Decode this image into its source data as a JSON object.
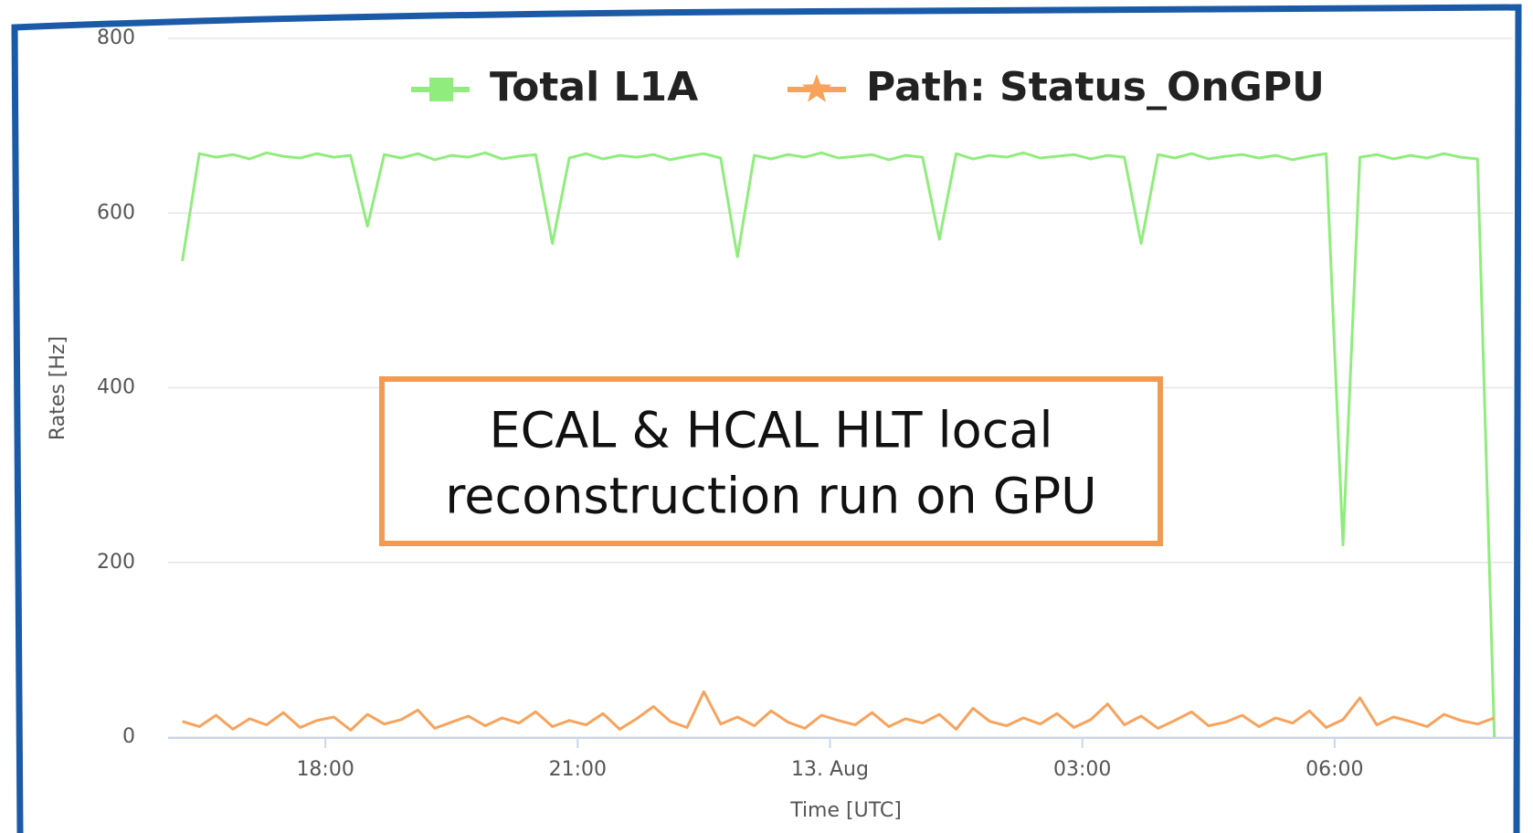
{
  "chart_data": {
    "type": "line",
    "annotation": [
      "ECAL & HCAL HLT  local",
      "reconstruction run on GPU"
    ],
    "xlabel": "Time [UTC]",
    "ylabel": "Rates [Hz]",
    "legend": "top",
    "xlim": [
      16.13,
      32.12
    ],
    "xticks": [
      {
        "value": 18,
        "label": "18:00"
      },
      {
        "value": 21,
        "label": "21:00"
      },
      {
        "value": 24,
        "label": "13. Aug"
      },
      {
        "value": 27,
        "label": "03:00"
      },
      {
        "value": 30,
        "label": "06:00"
      }
    ],
    "ylim": [
      0,
      800
    ],
    "yticks": [
      0,
      200,
      400,
      600,
      800
    ],
    "grid": true,
    "x": [
      16.3,
      16.5,
      16.7,
      16.9,
      17.1,
      17.3,
      17.5,
      17.7,
      17.9,
      18.1,
      18.3,
      18.5,
      18.7,
      18.9,
      19.1,
      19.3,
      19.5,
      19.7,
      19.9,
      20.1,
      20.3,
      20.5,
      20.7,
      20.9,
      21.1,
      21.3,
      21.5,
      21.7,
      21.9,
      22.1,
      22.3,
      22.5,
      22.7,
      22.9,
      23.1,
      23.3,
      23.5,
      23.7,
      23.9,
      24.1,
      24.3,
      24.5,
      24.7,
      24.9,
      25.1,
      25.3,
      25.5,
      25.7,
      25.9,
      26.1,
      26.3,
      26.5,
      26.7,
      26.9,
      27.1,
      27.3,
      27.5,
      27.7,
      27.9,
      28.1,
      28.3,
      28.5,
      28.7,
      28.9,
      29.1,
      29.3,
      29.5,
      29.7,
      29.9,
      30.1,
      30.3,
      30.5,
      30.7,
      30.9,
      31.1,
      31.3,
      31.5,
      31.7,
      31.9
    ],
    "series": [
      {
        "name": "Total L1A",
        "color": "#90ed7d",
        "marker": "square",
        "values": [
          545,
          668,
          664,
          667,
          662,
          669,
          665,
          663,
          668,
          664,
          666,
          585,
          667,
          663,
          668,
          661,
          666,
          664,
          669,
          662,
          665,
          667,
          565,
          663,
          668,
          662,
          666,
          664,
          667,
          661,
          665,
          668,
          663,
          550,
          666,
          662,
          667,
          664,
          669,
          663,
          665,
          667,
          661,
          666,
          664,
          570,
          668,
          662,
          666,
          664,
          669,
          663,
          665,
          667,
          662,
          666,
          664,
          565,
          667,
          663,
          668,
          662,
          665,
          667,
          663,
          666,
          661,
          665,
          668,
          220,
          664,
          667,
          662,
          666,
          663,
          668,
          664,
          662,
          0
        ]
      },
      {
        "name": "Path: Status_OnGPU",
        "color": "#f7a35c",
        "marker": "star",
        "values": [
          18,
          12,
          25,
          9,
          21,
          14,
          28,
          11,
          19,
          23,
          8,
          26,
          15,
          20,
          31,
          10,
          17,
          24,
          13,
          22,
          16,
          29,
          12,
          19,
          14,
          27,
          9,
          21,
          35,
          18,
          11,
          52,
          15,
          23,
          13,
          30,
          17,
          10,
          25,
          19,
          14,
          28,
          12,
          21,
          16,
          26,
          9,
          33,
          18,
          13,
          22,
          15,
          27,
          11,
          20,
          38,
          14,
          24,
          10,
          19,
          29,
          13,
          17,
          25,
          12,
          22,
          16,
          30,
          11,
          20,
          45,
          14,
          23,
          18,
          12,
          26,
          19,
          15,
          22
        ]
      }
    ]
  }
}
